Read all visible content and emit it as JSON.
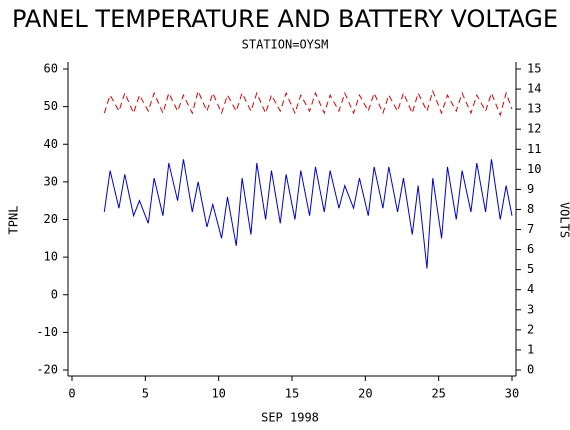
{
  "chart_data": {
    "type": "line",
    "title": "PANEL TEMPERATURE AND BATTERY VOLTAGE",
    "subtitle": "STATION=OYSM",
    "x_label": "SEP 1998",
    "y_label": "TPNL",
    "y2_label": "VOLTS",
    "x": [
      2.2,
      2.6,
      3.2,
      3.6,
      4.2,
      4.6,
      5.2,
      5.6,
      6.2,
      6.6,
      7.2,
      7.6,
      8.2,
      8.6,
      9.2,
      9.6,
      10.2,
      10.6,
      11.2,
      11.6,
      12.2,
      12.6,
      13.2,
      13.6,
      14.2,
      14.6,
      15.2,
      15.6,
      16.2,
      16.6,
      17.2,
      17.6,
      18.2,
      18.6,
      19.2,
      19.6,
      20.2,
      20.6,
      21.2,
      21.6,
      22.2,
      22.6,
      23.2,
      23.6,
      24.2,
      24.6,
      25.2,
      25.6,
      26.2,
      26.6,
      27.2,
      27.6,
      28.2,
      28.6,
      29.2,
      29.6,
      30.0
    ],
    "xlim": [
      0,
      30
    ],
    "xticks": [
      0,
      5,
      10,
      15,
      20,
      25,
      30
    ],
    "ylim": [
      -20,
      60
    ],
    "yticks": [
      -20,
      -10,
      0,
      10,
      20,
      30,
      40,
      50,
      60
    ],
    "y2lim": [
      0,
      15
    ],
    "y2ticks": [
      0,
      1,
      2,
      3,
      4,
      5,
      6,
      7,
      8,
      9,
      10,
      11,
      12,
      13,
      14,
      15
    ],
    "series": [
      {
        "name": "TPNL",
        "color": "#0000cc",
        "axis": "y",
        "dashed": false,
        "values": [
          22,
          33,
          23,
          32,
          21,
          25,
          19,
          31,
          21,
          35,
          25,
          36,
          22,
          30,
          18,
          24,
          15,
          26,
          13,
          31,
          16,
          35,
          20,
          33,
          19,
          32,
          20,
          33,
          21,
          34,
          22,
          33,
          23,
          29,
          23,
          31,
          21,
          34,
          23,
          34,
          22,
          31,
          16,
          29,
          7,
          31,
          15,
          34,
          20,
          33,
          22,
          35,
          22,
          36,
          20,
          29,
          21
        ]
      },
      {
        "name": "VOLTS",
        "color": "#dd0000",
        "axis": "y2",
        "dashed": true,
        "values": [
          12.8,
          13.7,
          12.9,
          13.8,
          12.8,
          13.7,
          12.9,
          13.8,
          12.8,
          13.8,
          12.9,
          13.7,
          12.8,
          13.9,
          12.9,
          13.8,
          12.8,
          13.7,
          12.9,
          13.8,
          12.9,
          13.8,
          12.8,
          13.7,
          12.9,
          13.8,
          12.8,
          13.7,
          12.9,
          13.8,
          12.8,
          13.7,
          12.9,
          13.8,
          12.8,
          13.7,
          12.9,
          13.8,
          12.8,
          13.7,
          12.9,
          13.8,
          12.8,
          13.8,
          12.9,
          13.9,
          12.8,
          13.7,
          12.9,
          13.8,
          12.8,
          13.7,
          12.9,
          13.8,
          12.7,
          13.8,
          13.0
        ]
      }
    ]
  }
}
